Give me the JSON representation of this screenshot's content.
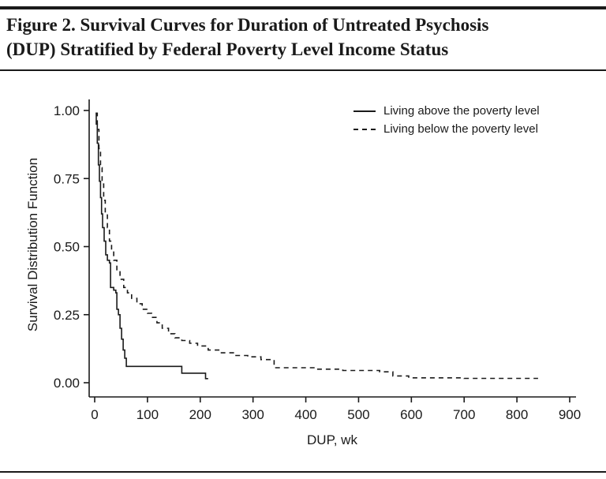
{
  "figure": {
    "title": "Figure 2. Survival Curves for Duration of Untreated Psychosis (DUP) Stratified by Federal Poverty Level Income Status",
    "title_lines": [
      "Figure 2. Survival Curves for Duration of Untreated Psychosis",
      "(DUP) Stratified by Federal Poverty Level Income Status"
    ]
  },
  "colors": {
    "ink": "#1a1a1a"
  },
  "chart_data": {
    "type": "line",
    "subtype": "kaplan-meier-step-survival",
    "title": "",
    "xlabel": "DUP, wk",
    "ylabel": "Survival Distribution Function",
    "xlim": [
      0,
      900
    ],
    "ylim": [
      0,
      1.0
    ],
    "x_ticks": [
      0,
      100,
      200,
      300,
      400,
      500,
      600,
      700,
      800,
      900
    ],
    "y_ticks": [
      0,
      0.25,
      0.5,
      0.75,
      1.0
    ],
    "y_tick_labels": [
      "0.00",
      "0.25",
      "0.50",
      "0.75",
      "1.00"
    ],
    "grid": false,
    "legend_position": "top-right-inside",
    "series": [
      {
        "name": "Living above the poverty level",
        "style": "solid",
        "points": [
          [
            2,
            0.99
          ],
          [
            3,
            0.95
          ],
          [
            5,
            0.88
          ],
          [
            7,
            0.8
          ],
          [
            9,
            0.74
          ],
          [
            11,
            0.68
          ],
          [
            13,
            0.62
          ],
          [
            15,
            0.57
          ],
          [
            18,
            0.52
          ],
          [
            21,
            0.47
          ],
          [
            24,
            0.45
          ],
          [
            28,
            0.44
          ],
          [
            30,
            0.35
          ],
          [
            36,
            0.34
          ],
          [
            40,
            0.33
          ],
          [
            42,
            0.27
          ],
          [
            45,
            0.25
          ],
          [
            48,
            0.2
          ],
          [
            51,
            0.16
          ],
          [
            54,
            0.12
          ],
          [
            57,
            0.09
          ],
          [
            60,
            0.06
          ],
          [
            165,
            0.035
          ],
          [
            210,
            0.015
          ],
          [
            215,
            0.015
          ]
        ]
      },
      {
        "name": "Living below the poverty level",
        "style": "dashed",
        "points": [
          [
            2,
            0.99
          ],
          [
            5,
            0.93
          ],
          [
            8,
            0.86
          ],
          [
            11,
            0.79
          ],
          [
            14,
            0.73
          ],
          [
            17,
            0.67
          ],
          [
            20,
            0.62
          ],
          [
            24,
            0.57
          ],
          [
            28,
            0.52
          ],
          [
            32,
            0.48
          ],
          [
            36,
            0.45
          ],
          [
            42,
            0.41
          ],
          [
            48,
            0.38
          ],
          [
            55,
            0.35
          ],
          [
            62,
            0.33
          ],
          [
            70,
            0.31
          ],
          [
            80,
            0.29
          ],
          [
            90,
            0.27
          ],
          [
            100,
            0.255
          ],
          [
            108,
            0.24
          ],
          [
            118,
            0.22
          ],
          [
            128,
            0.2
          ],
          [
            140,
            0.18
          ],
          [
            152,
            0.165
          ],
          [
            165,
            0.155
          ],
          [
            180,
            0.145
          ],
          [
            195,
            0.135
          ],
          [
            215,
            0.12
          ],
          [
            240,
            0.11
          ],
          [
            265,
            0.1
          ],
          [
            290,
            0.095
          ],
          [
            315,
            0.085
          ],
          [
            340,
            0.055
          ],
          [
            420,
            0.05
          ],
          [
            470,
            0.045
          ],
          [
            540,
            0.04
          ],
          [
            565,
            0.025
          ],
          [
            595,
            0.018
          ],
          [
            700,
            0.016
          ],
          [
            840,
            0.016
          ]
        ]
      }
    ]
  }
}
